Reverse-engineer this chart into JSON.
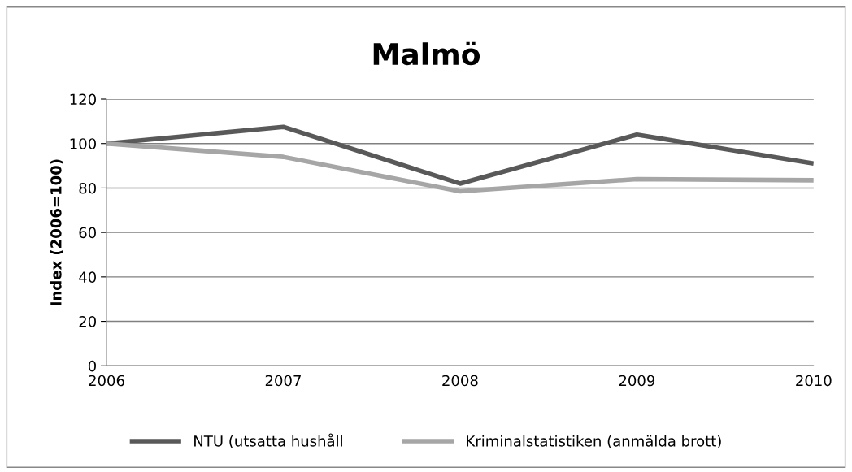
{
  "chart_data": {
    "type": "line",
    "title": "Malmö",
    "ylabel": "Index (2006=100)",
    "categories": [
      "2006",
      "2007",
      "2008",
      "2009",
      "2010"
    ],
    "series": [
      {
        "name": "NTU (utsatta hushåll",
        "color": "#595959",
        "values": [
          100,
          107.5,
          82,
          104,
          91
        ]
      },
      {
        "name": "Kriminalstatistiken (anmälda brott)",
        "color": "#a6a6a6",
        "values": [
          100,
          94,
          78.5,
          84,
          83.5
        ]
      }
    ],
    "ylim": [
      0,
      120
    ],
    "yticks": [
      0,
      20,
      40,
      60,
      80,
      100,
      120
    ],
    "grid": "y",
    "legend": "bottom",
    "marker": "none",
    "line_style": "solid"
  }
}
